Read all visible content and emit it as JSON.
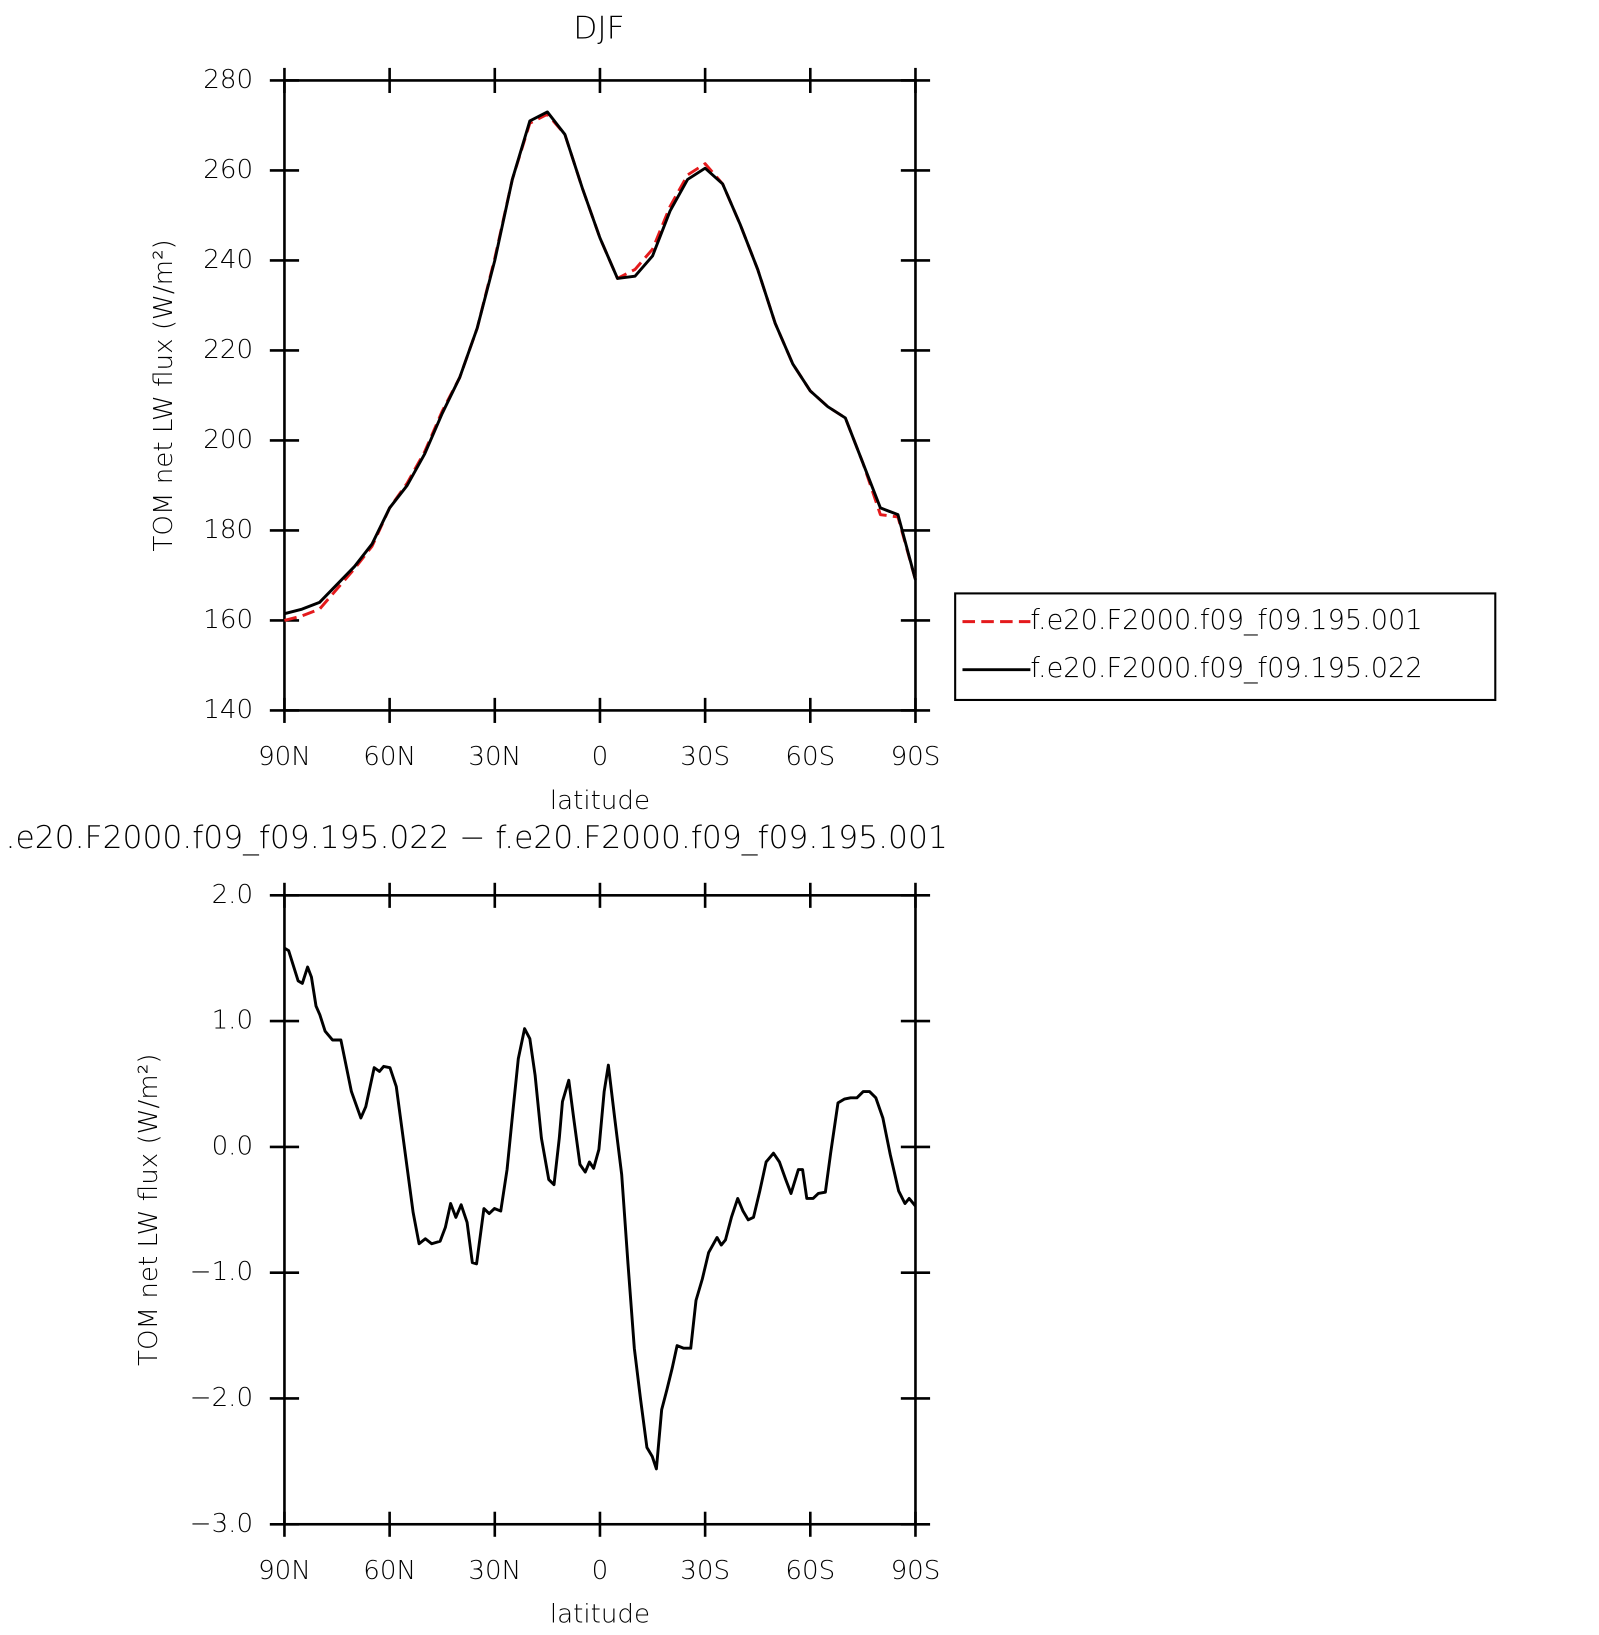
{
  "chart_data": [
    {
      "type": "line",
      "title": "DJF",
      "xlabel": "latitude",
      "ylabel": "TOM net LW flux (W/m²)",
      "x": [
        90,
        85,
        80,
        75,
        70,
        65,
        60,
        55,
        50,
        45,
        40,
        35,
        30,
        25,
        20,
        15,
        10,
        5,
        0,
        -5,
        -10,
        -15,
        -20,
        -25,
        -30,
        -35,
        -40,
        -45,
        -50,
        -55,
        -60,
        -65,
        -70,
        -75,
        -80,
        -85,
        -90
      ],
      "series": [
        {
          "name": "f.e20.F2000.f09_f09.195.001",
          "color": "#e41a1c",
          "linestyle": "dashed",
          "values": [
            160,
            161,
            162.5,
            167,
            171.5,
            176.5,
            185,
            190.5,
            197.5,
            206.5,
            214,
            225,
            240.5,
            258,
            270.5,
            272.5,
            268,
            256,
            245,
            236,
            238,
            242.5,
            252,
            259,
            261.5,
            257,
            248,
            238,
            226,
            217,
            211,
            207.5,
            205,
            195,
            183.5,
            183,
            169
          ]
        },
        {
          "name": "f.e20.F2000.f09_f09.195.022",
          "color": "#000000",
          "linestyle": "solid",
          "values": [
            161.5,
            162.5,
            164,
            168,
            172,
            177,
            185,
            190,
            197,
            206,
            214,
            225,
            240,
            258,
            271,
            273,
            268,
            256,
            245,
            236,
            236.5,
            241,
            251,
            258,
            260.5,
            257,
            248,
            238,
            226,
            217,
            211,
            207.5,
            205,
            195,
            185,
            183.5,
            169
          ]
        }
      ],
      "xlim": [
        90,
        -90
      ],
      "xticks": [
        {
          "value": 90,
          "label": "90N"
        },
        {
          "value": 60,
          "label": "60N"
        },
        {
          "value": 30,
          "label": "30N"
        },
        {
          "value": 0,
          "label": "0"
        },
        {
          "value": -30,
          "label": "30S"
        },
        {
          "value": -60,
          "label": "60S"
        },
        {
          "value": -90,
          "label": "90S"
        }
      ],
      "ylim": [
        140,
        280
      ],
      "yticks": [
        140,
        160,
        180,
        200,
        220,
        240,
        260,
        280
      ],
      "legend": "right"
    },
    {
      "type": "line",
      "title": ".e20.F2000.f09_f09.195.022 − f.e20.F2000.f09_f09.195.001",
      "xlabel": "latitude",
      "ylabel": "TOM net LW flux (W/m²)",
      "x": [
        90,
        88.8,
        86.1,
        84.9,
        83.4,
        82.3,
        81,
        79.9,
        78.4,
        76.3,
        73.9,
        70.9,
        68.2,
        66.8,
        64.4,
        62.9,
        61.7,
        59.9,
        58.1,
        55.7,
        53.3,
        51.6,
        49.8,
        48,
        45.6,
        44.1,
        42.6,
        41.1,
        39.6,
        37.9,
        36.4,
        35.2,
        33.1,
        31.6,
        30.1,
        28.3,
        26.5,
        24.7,
        23.3,
        21.5,
        20,
        18.5,
        16.7,
        14.6,
        13.1,
        11.6,
        10.7,
        8.9,
        7.5,
        5.7,
        4.2,
        3,
        1.8,
        0.3,
        -1.2,
        -2.4,
        -4.2,
        -6.2,
        -8,
        -9.8,
        -11.6,
        -13.4,
        -14.9,
        -16.1,
        -17.6,
        -19.1,
        -20.6,
        -22,
        -23.8,
        -25.9,
        -27.4,
        -29.2,
        -31,
        -33.4,
        -34.6,
        -35.8,
        -37.5,
        -39.3,
        -40.8,
        -42.3,
        -43.8,
        -45.6,
        -47.4,
        -49.5,
        -51.2,
        -53,
        -54.5,
        -56.6,
        -57.8,
        -59,
        -60.8,
        -62.3,
        -64.3,
        -65.8,
        -67.9,
        -69.7,
        -71.5,
        -73.3,
        -75.1,
        -76.9,
        -78.7,
        -80.7,
        -82.8,
        -85.2,
        -87,
        -88.2,
        -90
      ],
      "series": [
        {
          "color": "#000000",
          "linestyle": "solid",
          "values": [
            1.58,
            1.56,
            1.32,
            1.3,
            1.43,
            1.35,
            1.12,
            1.05,
            0.92,
            0.85,
            0.85,
            0.44,
            0.23,
            0.32,
            0.63,
            0.6,
            0.64,
            0.63,
            0.48,
            -0.02,
            -0.52,
            -0.77,
            -0.73,
            -0.77,
            -0.75,
            -0.64,
            -0.45,
            -0.56,
            -0.46,
            -0.6,
            -0.92,
            -0.93,
            -0.49,
            -0.53,
            -0.49,
            -0.51,
            -0.18,
            0.32,
            0.7,
            0.94,
            0.86,
            0.57,
            0.07,
            -0.26,
            -0.3,
            0.07,
            0.36,
            0.53,
            0.23,
            -0.14,
            -0.2,
            -0.12,
            -0.17,
            -0.02,
            0.44,
            0.65,
            0.23,
            -0.22,
            -0.93,
            -1.6,
            -2.01,
            -2.39,
            -2.46,
            -2.56,
            -2.09,
            -1.93,
            -1.76,
            -1.58,
            -1.6,
            -1.6,
            -1.22,
            -1.05,
            -0.84,
            -0.72,
            -0.78,
            -0.74,
            -0.56,
            -0.41,
            -0.51,
            -0.58,
            -0.56,
            -0.35,
            -0.12,
            -0.05,
            -0.12,
            -0.26,
            -0.37,
            -0.18,
            -0.18,
            -0.41,
            -0.41,
            -0.37,
            -0.36,
            -0.05,
            0.35,
            0.38,
            0.39,
            0.39,
            0.44,
            0.44,
            0.39,
            0.23,
            -0.06,
            -0.35,
            -0.45,
            -0.41,
            -0.47
          ]
        }
      ],
      "xlim": [
        90,
        -90
      ],
      "xticks": [
        {
          "value": 90,
          "label": "90N"
        },
        {
          "value": 60,
          "label": "60N"
        },
        {
          "value": 30,
          "label": "30N"
        },
        {
          "value": 0,
          "label": "0"
        },
        {
          "value": -30,
          "label": "30S"
        },
        {
          "value": -60,
          "label": "60S"
        },
        {
          "value": -90,
          "label": "90S"
        }
      ],
      "ylim": [
        -3,
        2
      ],
      "yticks": [
        {
          "value": 2,
          "label": "2.0"
        },
        {
          "value": 1,
          "label": "1.0"
        },
        {
          "value": 0,
          "label": "0.0"
        },
        {
          "value": -1,
          "label": "−1.0"
        },
        {
          "value": -2,
          "label": "−2.0"
        },
        {
          "value": -3,
          "label": "−3.0"
        }
      ]
    }
  ]
}
